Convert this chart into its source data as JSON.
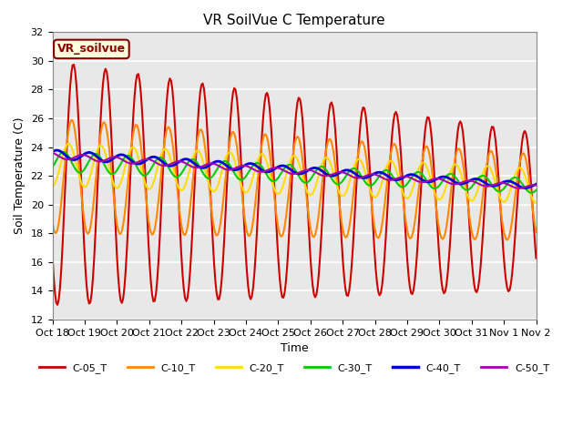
{
  "title": "VR SoilVue C Temperature",
  "ylabel": "Soil Temperature (C)",
  "xlabel": "Time",
  "annotation": "VR_soilvue",
  "ylim": [
    12,
    32
  ],
  "yticks": [
    12,
    14,
    16,
    18,
    20,
    22,
    24,
    26,
    28,
    30,
    32
  ],
  "xtick_labels": [
    "Oct 18",
    "Oct 19",
    "Oct 20",
    "Oct 21",
    "Oct 22",
    "Oct 23",
    "Oct 24",
    "Oct 25",
    "Oct 26",
    "Oct 27",
    "Oct 28",
    "Oct 29",
    "Oct 30",
    "Oct 31",
    "Nov 1",
    "Nov 2"
  ],
  "n_days": 16,
  "bg_color": "#e8e8e8",
  "fig_color": "#ffffff",
  "series_colors": {
    "C-05_T": "#cc0000",
    "C-10_T": "#ff8800",
    "C-20_T": "#ffdd00",
    "C-30_T": "#00cc00",
    "C-40_T": "#0000dd",
    "C-50_T": "#aa00aa"
  },
  "series_linewidths": {
    "C-05_T": 1.5,
    "C-10_T": 1.5,
    "C-20_T": 1.5,
    "C-30_T": 1.5,
    "C-40_T": 2.0,
    "C-50_T": 1.5
  }
}
